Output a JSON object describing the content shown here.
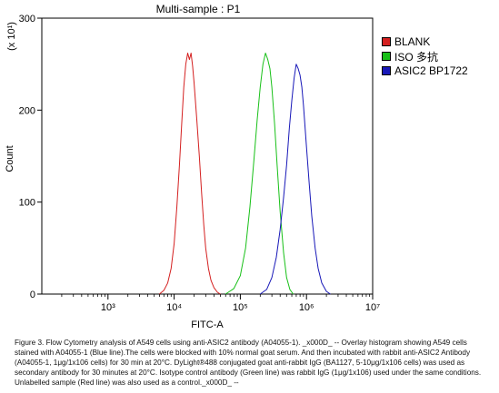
{
  "chart_data": {
    "type": "line",
    "title": "Multi-sample : P1",
    "xlabel": "FITC-A",
    "ylabel": "Count",
    "y_multiplier": "(x 10¹)",
    "x_scale": "log",
    "xlim": [
      100,
      10000000
    ],
    "ylim": [
      0,
      300
    ],
    "x_ticks": [
      {
        "value": 1000,
        "label": "10³"
      },
      {
        "value": 10000,
        "label": "10⁴"
      },
      {
        "value": 100000,
        "label": "10⁵"
      },
      {
        "value": 1000000,
        "label": "10⁶"
      },
      {
        "value": 10000000,
        "label": "10⁷"
      }
    ],
    "y_ticks": [
      0,
      100,
      200,
      300
    ],
    "grid": false,
    "legend_position": "right",
    "series": [
      {
        "name": "BLANK",
        "color": "#d42020",
        "x": [
          6000,
          7000,
          8000,
          9000,
          10000,
          11000,
          12000,
          13000,
          14000,
          15000,
          16000,
          17000,
          18000,
          19000,
          20000,
          22000,
          24000,
          26000,
          28000,
          30000,
          33000,
          36000,
          40000,
          45000,
          50000
        ],
        "y": [
          0,
          4,
          12,
          28,
          55,
          95,
          140,
          185,
          225,
          250,
          262,
          255,
          262,
          248,
          230,
          190,
          150,
          110,
          75,
          50,
          28,
          15,
          7,
          2,
          0
        ]
      },
      {
        "name": "ISO 多抗",
        "color": "#18c018",
        "x": [
          60000,
          80000,
          100000,
          120000,
          140000,
          160000,
          180000,
          200000,
          220000,
          240000,
          260000,
          280000,
          300000,
          330000,
          360000,
          400000,
          450000,
          500000,
          560000,
          630000
        ],
        "y": [
          0,
          6,
          20,
          50,
          95,
          145,
          190,
          225,
          250,
          262,
          255,
          245,
          225,
          185,
          140,
          90,
          45,
          18,
          5,
          0
        ]
      },
      {
        "name": "ASIC2 BP1722",
        "color": "#1818b8",
        "x": [
          200000,
          250000,
          300000,
          350000,
          400000,
          450000,
          500000,
          550000,
          600000,
          650000,
          700000,
          750000,
          800000,
          850000,
          900000,
          1000000,
          1100000,
          1200000,
          1350000,
          1500000,
          1700000,
          2000000,
          2300000
        ],
        "y": [
          0,
          5,
          18,
          40,
          70,
          105,
          140,
          180,
          210,
          235,
          250,
          245,
          238,
          225,
          205,
          160,
          120,
          85,
          50,
          28,
          12,
          3,
          0
        ]
      }
    ]
  },
  "caption": "Figure 3. Flow Cytometry analysis of A549 cells using anti-ASIC2 antibody (A04055-1). _x000D_ -- Overlay histogram showing A549 cells stained with A04055-1 (Blue line).The cells were blocked with 10% normal goat serum. And then incubated with rabbit anti-ASIC2 Antibody (A04055-1, 1μg/1x106 cells) for 30 min at 20°C. DyLight®488 conjugated goat anti-rabbit IgG (BA1127, 5-10μg/1x106 cells) was used as secondary antibody for 30 minutes at 20°C. Isotype control antibody (Green line) was rabbit IgG (1μg/1x106) used under the same conditions. Unlabelled sample (Red line) was also used as a control._x000D_ --"
}
